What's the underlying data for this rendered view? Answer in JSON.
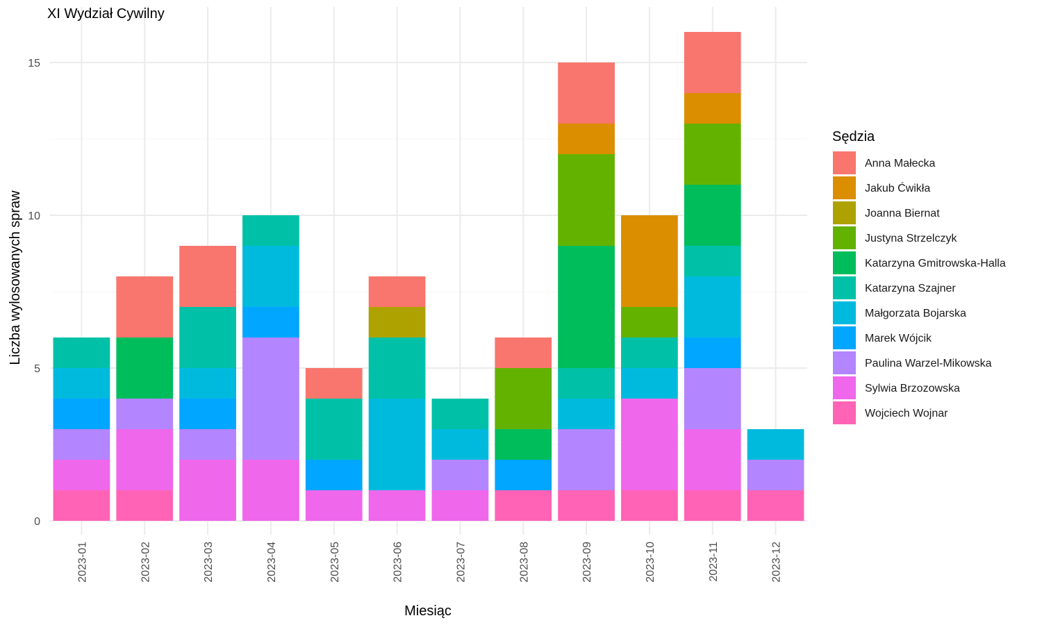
{
  "chart_data": {
    "type": "bar",
    "stacked": true,
    "title": "XI Wydział Cywilny",
    "xlabel": "Miesiąc",
    "ylabel": "Liczba wylosowanych spraw",
    "ylim": [
      0,
      16
    ],
    "yticks": [
      0,
      5,
      10,
      15
    ],
    "grid": true,
    "legend_position": "right",
    "legend_title": "Sędzia",
    "categories": [
      "2023-01",
      "2023-02",
      "2023-03",
      "2023-04",
      "2023-05",
      "2023-06",
      "2023-07",
      "2023-08",
      "2023-09",
      "2023-10",
      "2023-11",
      "2023-12"
    ],
    "series": [
      {
        "name": "Anna Małecka",
        "color": "#F8766D",
        "values": [
          0,
          2,
          2,
          0,
          1,
          1,
          0,
          1,
          2,
          0,
          2,
          0
        ]
      },
      {
        "name": "Jakub Ćwikła",
        "color": "#DB8E00",
        "values": [
          0,
          0,
          0,
          0,
          0,
          0,
          0,
          0,
          1,
          3,
          1,
          0
        ]
      },
      {
        "name": "Joanna Biernat",
        "color": "#AEA200",
        "values": [
          0,
          0,
          0,
          0,
          0,
          1,
          0,
          0,
          0,
          0,
          0,
          0
        ]
      },
      {
        "name": "Justyna Strzelczyk",
        "color": "#64B200",
        "values": [
          0,
          0,
          0,
          0,
          0,
          0,
          0,
          2,
          3,
          1,
          2,
          0
        ]
      },
      {
        "name": "Katarzyna Gmitrowska-Halla",
        "color": "#00BD5C",
        "values": [
          0,
          2,
          0,
          0,
          0,
          0,
          0,
          1,
          4,
          0,
          2,
          0
        ]
      },
      {
        "name": "Katarzyna Szajner",
        "color": "#00C1A7",
        "values": [
          1,
          0,
          2,
          1,
          2,
          2,
          1,
          0,
          1,
          1,
          1,
          0
        ]
      },
      {
        "name": "Małgorzata Bojarska",
        "color": "#00BADE",
        "values": [
          1,
          0,
          1,
          2,
          0,
          3,
          1,
          0,
          1,
          1,
          2,
          1
        ]
      },
      {
        "name": "Marek Wójcik",
        "color": "#00A6FF",
        "values": [
          1,
          0,
          1,
          1,
          1,
          0,
          0,
          1,
          0,
          0,
          1,
          0
        ]
      },
      {
        "name": "Paulina Warzel-Mikowska",
        "color": "#B385FF",
        "values": [
          1,
          1,
          1,
          4,
          0,
          0,
          1,
          0,
          2,
          0,
          2,
          1
        ]
      },
      {
        "name": "Sylwia Brzozowska",
        "color": "#EF67EB",
        "values": [
          1,
          2,
          2,
          2,
          1,
          1,
          1,
          0,
          0,
          3,
          2,
          0
        ]
      },
      {
        "name": "Wojciech Wojnar",
        "color": "#FF63B6",
        "values": [
          1,
          1,
          0,
          0,
          0,
          0,
          0,
          1,
          1,
          1,
          1,
          1
        ]
      }
    ]
  }
}
